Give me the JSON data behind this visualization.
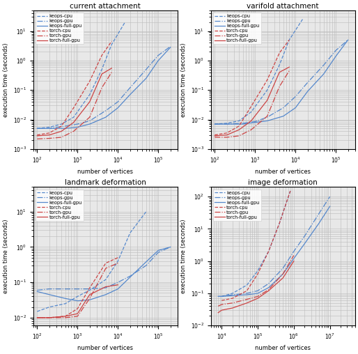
{
  "xlabel": "number of vertices",
  "ylabel": "execution time (seconds)",
  "blue_color": "#5588cc",
  "red_color": "#cc4444",
  "face_color": "#e8e8e8",
  "grid_color": "#bbbbbb",
  "subplots": [
    {
      "title": "current attachment",
      "xlim": [
        80,
        300000.0
      ],
      "ylim": [
        0.001,
        50.0
      ],
      "series": [
        {
          "label": "keops-cpu",
          "color": "blue",
          "ls": "--",
          "xdata": [
            100.0,
            200.0,
            400.0,
            800.0,
            2000.0,
            4000.0,
            7000.0,
            15000.0
          ],
          "ydata": [
            0.005,
            0.0055,
            0.007,
            0.012,
            0.07,
            0.5,
            3.5,
            20.0
          ]
        },
        {
          "label": "keops-gpu",
          "color": "blue",
          "ls": "-.",
          "xdata": [
            100.0,
            200.0,
            500.0,
            1000.0,
            2000.0,
            5000.0,
            10000.0,
            20000.0,
            50000.0,
            100000.0,
            200000.0
          ],
          "ydata": [
            0.005,
            0.005,
            0.006,
            0.007,
            0.009,
            0.02,
            0.04,
            0.12,
            0.5,
            1.5,
            3.0
          ]
        },
        {
          "label": "keops-full-gpu",
          "color": "blue",
          "ls": "-",
          "xdata": [
            100.0,
            200.0,
            500.0,
            1000.0,
            2000.0,
            5000.0,
            10000.0,
            20000.0,
            50000.0,
            100000.0,
            200000.0
          ],
          "ydata": [
            0.005,
            0.005,
            0.005,
            0.0055,
            0.007,
            0.012,
            0.025,
            0.07,
            0.25,
            1.0,
            2.8
          ]
        },
        {
          "label": "torch-cpu",
          "color": "red",
          "ls": "--",
          "xdata": [
            100.0,
            200.0,
            400.0,
            800.0,
            2000.0,
            4000.0,
            7000.0
          ],
          "ydata": [
            0.003,
            0.0035,
            0.006,
            0.025,
            0.2,
            1.5,
            4.5
          ]
        },
        {
          "label": "torch-gpu",
          "color": "red",
          "ls": "-.",
          "xdata": [
            100.0,
            200.0,
            400.0,
            800.0,
            2000.0,
            4000.0,
            7000.0
          ],
          "ydata": [
            0.0022,
            0.0023,
            0.0025,
            0.004,
            0.012,
            0.12,
            0.4
          ]
        },
        {
          "label": "torch-full-gpu",
          "color": "red",
          "ls": "-",
          "xdata": [
            100.0,
            200.0,
            400.0,
            800.0,
            2000.0,
            4000.0,
            7000.0
          ],
          "ydata": [
            0.0028,
            0.003,
            0.004,
            0.008,
            0.04,
            0.35,
            0.55
          ]
        }
      ]
    },
    {
      "title": "varifold attachment",
      "xlim": [
        80,
        300000.0
      ],
      "ylim": [
        0.001,
        50.0
      ],
      "series": [
        {
          "label": "keops-cpu",
          "color": "blue",
          "ls": "--",
          "xdata": [
            100.0,
            200.0,
            400.0,
            800.0,
            2000.0,
            4000.0,
            7000.0,
            15000.0
          ],
          "ydata": [
            0.007,
            0.0075,
            0.009,
            0.018,
            0.1,
            0.7,
            5.0,
            25.0
          ]
        },
        {
          "label": "keops-gpu",
          "color": "blue",
          "ls": "-.",
          "xdata": [
            100.0,
            200.0,
            500.0,
            1000.0,
            2000.0,
            5000.0,
            10000.0,
            20000.0,
            50000.0,
            100000.0,
            200000.0
          ],
          "ydata": [
            0.007,
            0.007,
            0.0075,
            0.0085,
            0.012,
            0.025,
            0.06,
            0.18,
            0.7,
            2.2,
            5.0
          ]
        },
        {
          "label": "keops-full-gpu",
          "color": "blue",
          "ls": "-",
          "xdata": [
            100.0,
            200.0,
            500.0,
            1000.0,
            2000.0,
            5000.0,
            10000.0,
            20000.0,
            50000.0,
            100000.0,
            200000.0
          ],
          "ydata": [
            0.007,
            0.007,
            0.007,
            0.008,
            0.009,
            0.013,
            0.025,
            0.09,
            0.35,
            1.4,
            5.0
          ]
        },
        {
          "label": "torch-cpu",
          "color": "red",
          "ls": "--",
          "xdata": [
            100.0,
            200.0,
            400.0,
            800.0,
            2000.0,
            4000.0,
            7000.0
          ],
          "ydata": [
            0.003,
            0.0035,
            0.006,
            0.028,
            0.22,
            1.8,
            5.0
          ]
        },
        {
          "label": "torch-gpu",
          "color": "red",
          "ls": "-.",
          "xdata": [
            100.0,
            200.0,
            400.0,
            800.0,
            2000.0,
            4000.0,
            7000.0
          ],
          "ydata": [
            0.0025,
            0.0025,
            0.0028,
            0.0045,
            0.013,
            0.13,
            0.45
          ]
        },
        {
          "label": "torch-full-gpu",
          "color": "red",
          "ls": "-",
          "xdata": [
            100.0,
            200.0,
            400.0,
            800.0,
            2000.0,
            4000.0,
            7000.0
          ],
          "ydata": [
            0.0028,
            0.003,
            0.0045,
            0.009,
            0.045,
            0.4,
            0.6
          ]
        }
      ]
    },
    {
      "title": "landmark deformation",
      "xlim": [
        80,
        300000.0
      ],
      "ylim": [
        0.006,
        50.0
      ],
      "series": [
        {
          "label": "keops-cpu",
          "color": "blue",
          "ls": "--",
          "xdata": [
            100.0,
            200.0,
            500.0,
            1000.0,
            2000.0,
            5000.0,
            10000.0,
            20000.0,
            50000.0
          ],
          "ydata": [
            0.015,
            0.02,
            0.025,
            0.04,
            0.06,
            0.12,
            0.4,
            2.5,
            10.0
          ]
        },
        {
          "label": "keops-gpu",
          "color": "blue",
          "ls": "-.",
          "xdata": [
            100.0,
            200.0,
            500.0,
            1000.0,
            2000.0,
            5000.0,
            10000.0,
            20000.0,
            50000.0,
            100000.0,
            200000.0
          ],
          "ydata": [
            0.06,
            0.065,
            0.065,
            0.065,
            0.065,
            0.07,
            0.1,
            0.15,
            0.3,
            0.7,
            1.0
          ]
        },
        {
          "label": "keops-full-gpu",
          "color": "blue",
          "ls": "-",
          "xdata": [
            100.0,
            200.0,
            500.0,
            1000.0,
            2000.0,
            5000.0,
            10000.0,
            20000.0,
            50000.0,
            100000.0,
            200000.0
          ],
          "ydata": [
            0.055,
            0.045,
            0.035,
            0.03,
            0.032,
            0.045,
            0.065,
            0.14,
            0.38,
            0.8,
            1.0
          ]
        },
        {
          "label": "torch-cpu",
          "color": "red",
          "ls": "--",
          "xdata": [
            100.0,
            200.0,
            500.0,
            1000.0,
            2000.0,
            5000.0,
            10000.0
          ],
          "ydata": [
            0.01,
            0.01,
            0.011,
            0.018,
            0.07,
            0.35,
            0.5
          ]
        },
        {
          "label": "torch-gpu",
          "color": "red",
          "ls": "-.",
          "xdata": [
            100.0,
            200.0,
            500.0,
            1000.0,
            2000.0,
            5000.0,
            10000.0
          ],
          "ydata": [
            0.01,
            0.01,
            0.01,
            0.011,
            0.035,
            0.25,
            0.35
          ]
        },
        {
          "label": "torch-full-gpu",
          "color": "red",
          "ls": "-",
          "xdata": [
            100.0,
            200.0,
            500.0,
            1000.0,
            2000.0,
            5000.0,
            10000.0
          ],
          "ydata": [
            0.01,
            0.01,
            0.011,
            0.013,
            0.045,
            0.075,
            0.085
          ]
        }
      ]
    },
    {
      "title": "image deformation",
      "xlim": [
        5000.0,
        50000000.0
      ],
      "ylim": [
        0.01,
        200.0
      ],
      "series": [
        {
          "label": "keops-cpu",
          "color": "blue",
          "ls": "--",
          "xdata": [
            10000.0,
            20000.0,
            50000.0,
            100000.0,
            200000.0,
            400000.0,
            800000.0
          ],
          "ydata": [
            0.08,
            0.1,
            0.18,
            0.5,
            2.0,
            15.0,
            150.0
          ]
        },
        {
          "label": "keops-gpu",
          "color": "blue",
          "ls": "-.",
          "xdata": [
            8000.0,
            10000.0,
            20000.0,
            50000.0,
            100000.0,
            200000.0,
            500000.0,
            1000000.0,
            2000000.0,
            5000000.0,
            10000000.0
          ],
          "ydata": [
            0.08,
            0.08,
            0.09,
            0.1,
            0.12,
            0.2,
            0.6,
            2.0,
            6.0,
            30.0,
            100.0
          ]
        },
        {
          "label": "keops-full-gpu",
          "color": "blue",
          "ls": "-",
          "xdata": [
            8000.0,
            10000.0,
            20000.0,
            50000.0,
            100000.0,
            200000.0,
            500000.0,
            1000000.0,
            2000000.0,
            5000000.0,
            10000000.0
          ],
          "ydata": [
            0.08,
            0.08,
            0.085,
            0.09,
            0.1,
            0.15,
            0.4,
            1.2,
            3.5,
            15.0,
            50.0
          ]
        },
        {
          "label": "torch-cpu",
          "color": "red",
          "ls": "--",
          "xdata": [
            10000.0,
            20000.0,
            50000.0,
            100000.0,
            200000.0,
            400000.0,
            800000.0
          ],
          "ydata": [
            0.06,
            0.07,
            0.12,
            0.4,
            2.0,
            15.0,
            150.0
          ]
        },
        {
          "label": "torch-gpu",
          "color": "red",
          "ls": "-.",
          "xdata": [
            8000.0,
            10000.0,
            20000.0,
            50000.0,
            100000.0,
            200000.0,
            500000.0,
            1000000.0
          ],
          "ydata": [
            0.04,
            0.045,
            0.05,
            0.065,
            0.08,
            0.13,
            0.4,
            1.5
          ]
        },
        {
          "label": "torch-full-gpu",
          "color": "red",
          "ls": "-",
          "xdata": [
            8000.0,
            10000.0,
            20000.0,
            50000.0,
            100000.0,
            200000.0,
            500000.0,
            1000000.0
          ],
          "ydata": [
            0.025,
            0.03,
            0.035,
            0.05,
            0.07,
            0.12,
            0.3,
            1.0
          ]
        }
      ]
    }
  ]
}
